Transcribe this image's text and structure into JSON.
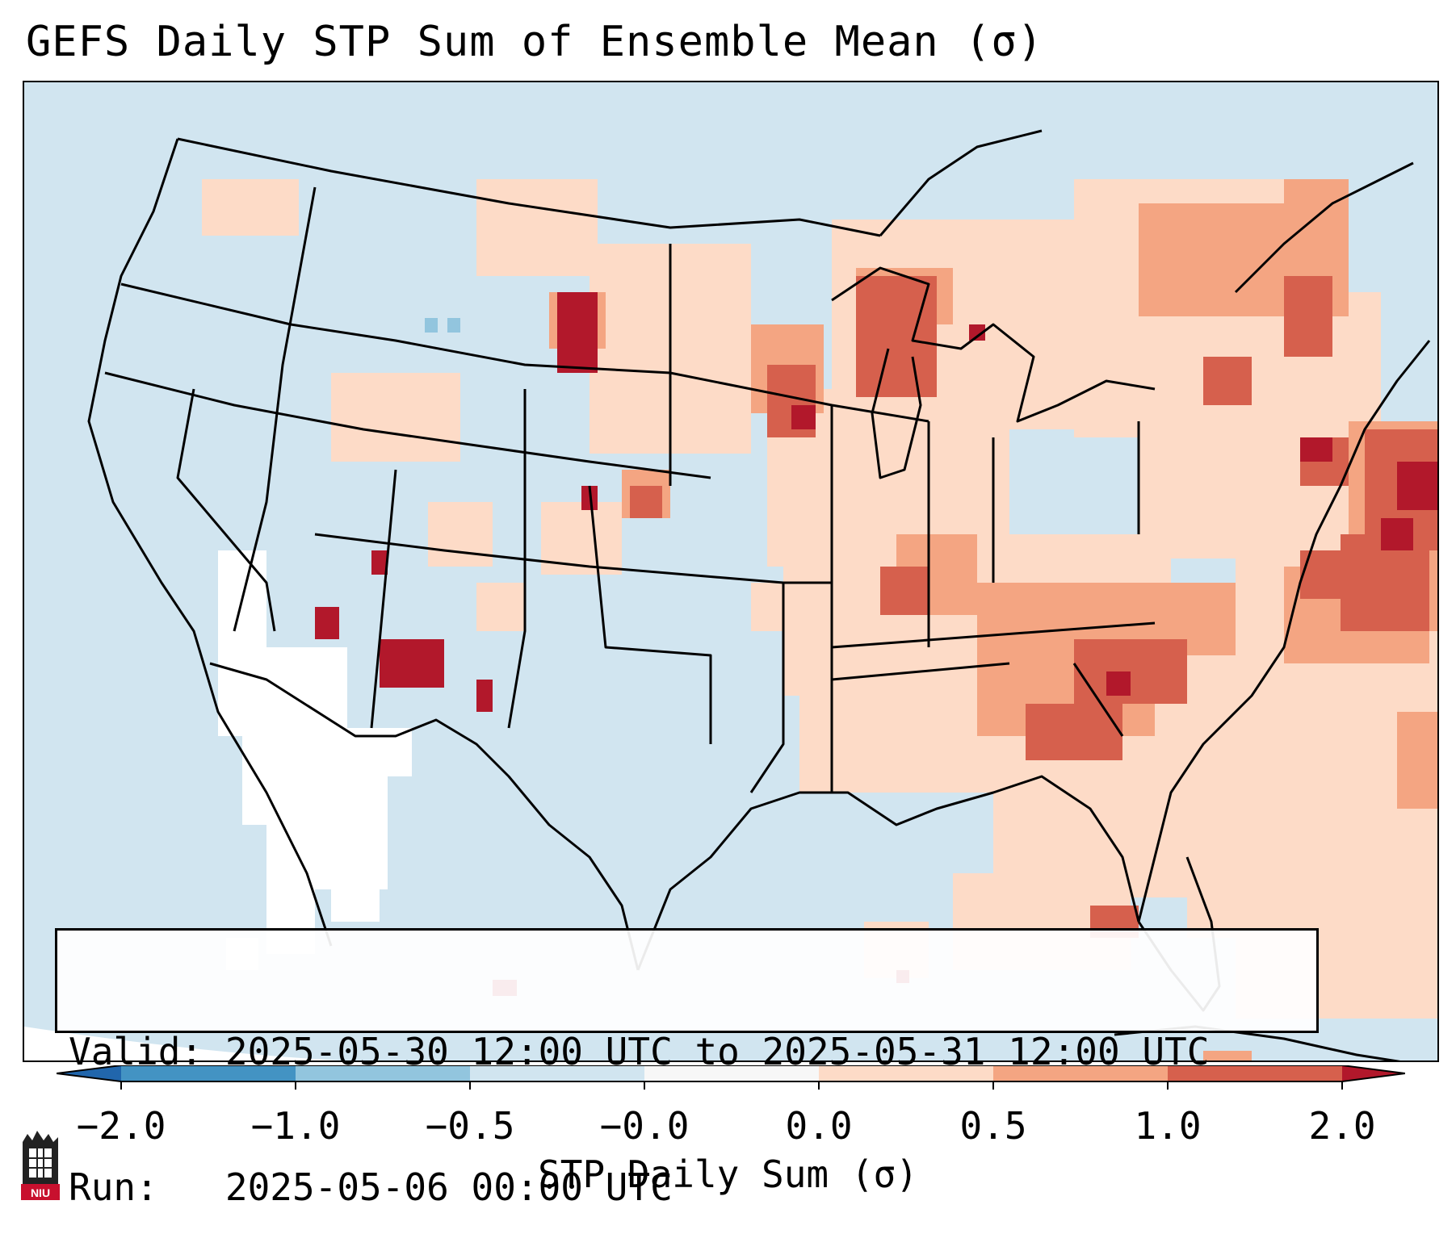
{
  "title": "GEFS Daily STP Sum of Ensemble Mean (σ)",
  "info": {
    "valid_label": "Valid:",
    "valid_text": "2025-05-30 12:00 UTC to 2025-05-31 12:00 UTC",
    "run_label": "Run:",
    "run_text": "2025-05-06 00:00 UTC"
  },
  "colorbar": {
    "label": "STP Daily Sum (σ)",
    "ticks": [
      "−2.0",
      "−1.0",
      "−0.5",
      "−0.0",
      "0.0",
      "0.5",
      "1.0",
      "2.0"
    ],
    "colors": {
      "below_min": "#2166ac",
      "bin_1": "#4393c3",
      "bin_2": "#92c5de",
      "bin_3": "#d1e5f0",
      "bin_4": "#f7f7f7",
      "bin_5": "#fddbc7",
      "bin_6": "#f4a582",
      "bin_7": "#d6604d",
      "above_max": "#b2182b"
    }
  },
  "colors": {
    "background_field": "#d1e5f0",
    "outside_field": "#ffffff",
    "boundary": "#000000"
  },
  "logo": {
    "text": "NIU"
  }
}
